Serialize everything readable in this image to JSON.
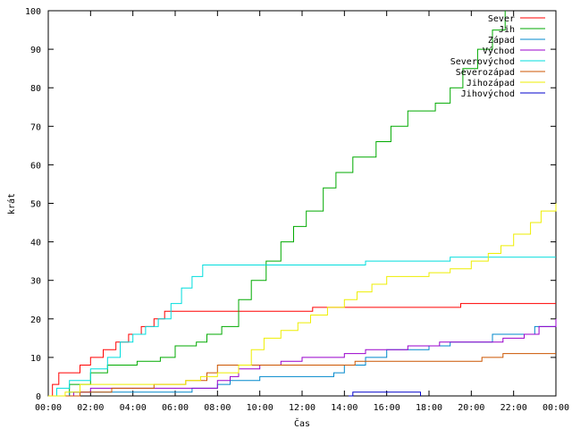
{
  "chart_data": {
    "type": "line",
    "title": "",
    "xlabel": "Čas",
    "ylabel": "krát",
    "xlim": [
      0,
      24
    ],
    "ylim": [
      0,
      100
    ],
    "x_ticks": [
      0,
      2,
      4,
      6,
      8,
      10,
      12,
      14,
      16,
      18,
      20,
      22,
      24
    ],
    "x_tick_labels": [
      "00:00",
      "02:00",
      "04:00",
      "06:00",
      "08:00",
      "10:00",
      "12:00",
      "14:00",
      "16:00",
      "18:00",
      "20:00",
      "22:00",
      "00:00"
    ],
    "y_ticks": [
      0,
      10,
      20,
      30,
      40,
      50,
      60,
      70,
      80,
      90,
      100
    ],
    "y_tick_labels": [
      "0",
      "10",
      "20",
      "30",
      "40",
      "50",
      "60",
      "70",
      "80",
      "90",
      "100"
    ],
    "grid": false,
    "legend_position": "top-right",
    "series": [
      {
        "name": "Sever",
        "color": "#ff0000",
        "points": [
          [
            0,
            0
          ],
          [
            0.2,
            3
          ],
          [
            0.5,
            6
          ],
          [
            1.5,
            8
          ],
          [
            2.0,
            10
          ],
          [
            2.6,
            12
          ],
          [
            3.2,
            14
          ],
          [
            3.8,
            16
          ],
          [
            4.4,
            18
          ],
          [
            5.0,
            20
          ],
          [
            5.5,
            22
          ],
          [
            12.5,
            23
          ],
          [
            19.5,
            24
          ],
          [
            24,
            24
          ]
        ]
      },
      {
        "name": "Jih",
        "color": "#00aa00",
        "points": [
          [
            0,
            0
          ],
          [
            1.0,
            3
          ],
          [
            2.0,
            6
          ],
          [
            2.8,
            8
          ],
          [
            4.2,
            9
          ],
          [
            5.3,
            10
          ],
          [
            6.0,
            13
          ],
          [
            7.0,
            14
          ],
          [
            7.5,
            16
          ],
          [
            8.2,
            18
          ],
          [
            9.0,
            25
          ],
          [
            9.6,
            30
          ],
          [
            10.3,
            35
          ],
          [
            11.0,
            40
          ],
          [
            11.6,
            44
          ],
          [
            12.2,
            48
          ],
          [
            13.0,
            54
          ],
          [
            13.6,
            58
          ],
          [
            14.4,
            62
          ],
          [
            15.5,
            66
          ],
          [
            16.2,
            70
          ],
          [
            17.0,
            74
          ],
          [
            18.3,
            76
          ],
          [
            19.0,
            80
          ],
          [
            19.6,
            85
          ],
          [
            20.3,
            90
          ],
          [
            21.0,
            95
          ],
          [
            21.6,
            100
          ]
        ]
      },
      {
        "name": "Západ",
        "color": "#0088cc",
        "points": [
          [
            0,
            0
          ],
          [
            1.0,
            1
          ],
          [
            6.0,
            1
          ],
          [
            6.8,
            2
          ],
          [
            8.0,
            3
          ],
          [
            8.6,
            4
          ],
          [
            10.0,
            5
          ],
          [
            13.5,
            6
          ],
          [
            14.0,
            8
          ],
          [
            15.0,
            10
          ],
          [
            16.0,
            12
          ],
          [
            18.0,
            13
          ],
          [
            19.0,
            14
          ],
          [
            21.0,
            16
          ],
          [
            23.0,
            18
          ],
          [
            24,
            19
          ]
        ]
      },
      {
        "name": "Východ",
        "color": "#9900cc",
        "points": [
          [
            0,
            0
          ],
          [
            1.2,
            1
          ],
          [
            2.0,
            2
          ],
          [
            8.0,
            4
          ],
          [
            8.6,
            5
          ],
          [
            9.0,
            7
          ],
          [
            10.0,
            8
          ],
          [
            11.0,
            9
          ],
          [
            12.0,
            10
          ],
          [
            14.0,
            11
          ],
          [
            15.0,
            12
          ],
          [
            17.0,
            13
          ],
          [
            18.5,
            14
          ],
          [
            20.5,
            14
          ],
          [
            21.5,
            15
          ],
          [
            22.5,
            16
          ],
          [
            23.2,
            18
          ],
          [
            24,
            20
          ]
        ]
      },
      {
        "name": "Severovýchod",
        "color": "#00dddd",
        "points": [
          [
            0,
            0
          ],
          [
            0.4,
            2
          ],
          [
            1.0,
            4
          ],
          [
            2.0,
            7
          ],
          [
            2.8,
            10
          ],
          [
            3.4,
            14
          ],
          [
            4.0,
            16
          ],
          [
            4.6,
            18
          ],
          [
            5.2,
            20
          ],
          [
            5.8,
            24
          ],
          [
            6.3,
            28
          ],
          [
            6.8,
            31
          ],
          [
            7.3,
            34
          ],
          [
            15.0,
            35
          ],
          [
            19.0,
            36
          ],
          [
            24,
            36
          ]
        ]
      },
      {
        "name": "Severozápad",
        "color": "#cc5500",
        "points": [
          [
            0,
            0
          ],
          [
            1.5,
            1
          ],
          [
            3.0,
            2
          ],
          [
            5.0,
            3
          ],
          [
            6.5,
            4
          ],
          [
            7.5,
            6
          ],
          [
            8.0,
            8
          ],
          [
            14.5,
            9
          ],
          [
            20.5,
            10
          ],
          [
            21.5,
            11
          ],
          [
            24,
            11
          ]
        ]
      },
      {
        "name": "Jihozápad",
        "color": "#eeee00",
        "points": [
          [
            0,
            0
          ],
          [
            0.8,
            1
          ],
          [
            1.5,
            3
          ],
          [
            6.5,
            4
          ],
          [
            7.2,
            5
          ],
          [
            8.0,
            6
          ],
          [
            9.0,
            8
          ],
          [
            9.6,
            12
          ],
          [
            10.2,
            15
          ],
          [
            11.0,
            17
          ],
          [
            11.8,
            19
          ],
          [
            12.4,
            21
          ],
          [
            13.2,
            23
          ],
          [
            14.0,
            25
          ],
          [
            14.6,
            27
          ],
          [
            15.3,
            29
          ],
          [
            16.0,
            31
          ],
          [
            18.0,
            32
          ],
          [
            19.0,
            33
          ],
          [
            20.0,
            35
          ],
          [
            20.8,
            37
          ],
          [
            21.4,
            39
          ],
          [
            22.0,
            42
          ],
          [
            22.8,
            45
          ],
          [
            23.3,
            48
          ],
          [
            24,
            50
          ]
        ]
      },
      {
        "name": "Jihovýchod",
        "color": "#0000cc",
        "points": [
          [
            14.2,
            0
          ],
          [
            14.4,
            1
          ],
          [
            17.0,
            1
          ],
          [
            17.6,
            0
          ]
        ]
      }
    ]
  }
}
